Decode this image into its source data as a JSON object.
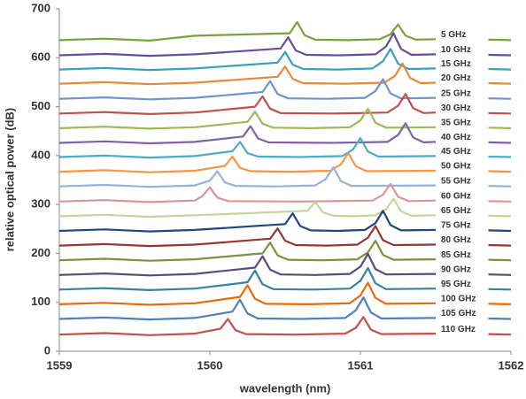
{
  "chart_data": {
    "type": "line",
    "x_label": "wavelength (nm)",
    "y_label": "relative optical power (dB)",
    "xlim": [
      1559,
      1562
    ],
    "xticks": [
      1559,
      1560,
      1561,
      1562
    ],
    "ylim": [
      0,
      700
    ],
    "yticks": [
      0,
      100,
      200,
      300,
      400,
      500,
      600,
      700
    ],
    "grid": false,
    "legend": "right",
    "series": [
      {
        "name": "5 GHz",
        "color": "#77a33a",
        "x": [
          1559,
          1559.3,
          1559.6,
          1559.9,
          1560.53,
          1560.58,
          1560.63,
          1560.7,
          1560.92,
          1561.13,
          1561.2,
          1561.25,
          1561.3,
          1561.37,
          1561.5,
          1561.7,
          1561.85,
          1562
        ],
        "values": [
          636,
          639,
          635,
          645,
          650,
          673,
          646,
          637,
          636,
          638,
          648,
          668,
          645,
          637,
          638,
          null,
          637,
          636
        ]
      },
      {
        "name": "10 GHz",
        "color": "#6b4c9a",
        "x": [
          1559,
          1559.3,
          1559.6,
          1559.9,
          1560.47,
          1560.52,
          1560.57,
          1560.64,
          1560.87,
          1561.1,
          1561.17,
          1561.22,
          1561.27,
          1561.34,
          1561.5,
          1561.7,
          1561.85,
          1562
        ],
        "values": [
          605,
          608,
          604,
          607,
          619,
          642,
          615,
          606,
          605,
          607,
          623,
          650,
          618,
          606,
          607,
          null,
          606,
          605
        ]
      },
      {
        "name": "15 GHz",
        "color": "#3aa0b8",
        "x": [
          1559,
          1559.3,
          1559.6,
          1559.9,
          1560.45,
          1560.5,
          1560.55,
          1560.62,
          1560.85,
          1561.08,
          1561.15,
          1561.2,
          1561.25,
          1561.32,
          1561.5,
          1561.7,
          1561.85,
          1562
        ],
        "values": [
          576,
          579,
          575,
          578,
          590,
          612,
          586,
          577,
          576,
          578,
          593,
          618,
          588,
          577,
          578,
          null,
          577,
          576
        ]
      },
      {
        "name": "20 GHz",
        "color": "#e5893a",
        "x": [
          1559,
          1559.3,
          1559.6,
          1559.9,
          1560.45,
          1560.5,
          1560.55,
          1560.62,
          1560.89,
          1561.16,
          1561.23,
          1561.28,
          1561.33,
          1561.4,
          1561.5,
          1561.7,
          1561.85,
          1562
        ],
        "values": [
          547,
          550,
          546,
          549,
          561,
          582,
          557,
          548,
          547,
          549,
          563,
          588,
          559,
          548,
          549,
          null,
          548,
          547
        ]
      },
      {
        "name": "25 GHz",
        "color": "#6f93cc",
        "x": [
          1559,
          1559.3,
          1559.6,
          1559.9,
          1560.35,
          1560.4,
          1560.45,
          1560.52,
          1560.78,
          1561.03,
          1561.1,
          1561.15,
          1561.2,
          1561.27,
          1561.5,
          1561.7,
          1561.85,
          1562
        ],
        "values": [
          516,
          519,
          515,
          518,
          530,
          552,
          526,
          517,
          516,
          518,
          532,
          556,
          527,
          517,
          518,
          null,
          517,
          516
        ]
      },
      {
        "name": "30 GHz",
        "color": "#c0504d",
        "x": [
          1559,
          1559.3,
          1559.6,
          1559.9,
          1560.3,
          1560.35,
          1560.4,
          1560.47,
          1560.83,
          1561.18,
          1561.25,
          1561.3,
          1561.35,
          1561.42,
          1561.5,
          1561.7,
          1561.85,
          1562
        ],
        "values": [
          486,
          489,
          485,
          488,
          500,
          521,
          496,
          487,
          486,
          488,
          502,
          526,
          497,
          487,
          488,
          null,
          487,
          486
        ]
      },
      {
        "name": "35 GHz",
        "color": "#9bbb59",
        "x": [
          1559,
          1559.3,
          1559.6,
          1559.9,
          1560.25,
          1560.3,
          1560.35,
          1560.42,
          1560.68,
          1560.93,
          1561,
          1561.05,
          1561.1,
          1561.17,
          1561.5,
          1561.7,
          1561.85,
          1562
        ],
        "values": [
          456,
          459,
          455,
          458,
          469,
          490,
          465,
          457,
          456,
          458,
          472,
          496,
          467,
          457,
          458,
          null,
          457,
          456
        ]
      },
      {
        "name": "40 GHz",
        "color": "#8064a2",
        "x": [
          1559,
          1559.3,
          1559.6,
          1559.9,
          1560.22,
          1560.27,
          1560.32,
          1560.39,
          1560.79,
          1561.18,
          1561.25,
          1561.3,
          1561.35,
          1561.42,
          1561.5,
          1561.7,
          1561.85,
          1562
        ],
        "values": [
          426,
          429,
          425,
          428,
          439,
          460,
          435,
          427,
          426,
          428,
          442,
          466,
          437,
          427,
          428,
          null,
          427,
          426
        ]
      },
      {
        "name": "45 GHz",
        "color": "#4bacc6",
        "x": [
          1559,
          1559.3,
          1559.6,
          1559.9,
          1560.15,
          1560.2,
          1560.25,
          1560.32,
          1560.6,
          1560.88,
          1560.95,
          1561,
          1561.05,
          1561.12,
          1561.5,
          1561.7,
          1561.85,
          1562
        ],
        "values": [
          397,
          400,
          396,
          399,
          409,
          428,
          405,
          398,
          397,
          399,
          412,
          436,
          408,
          398,
          399,
          null,
          398,
          397
        ]
      },
      {
        "name": "50 GHz",
        "color": "#f79646",
        "x": [
          1559,
          1559.3,
          1559.6,
          1559.9,
          1560.1,
          1560.15,
          1560.2,
          1560.27,
          1560.54,
          1560.8,
          1560.87,
          1560.92,
          1560.97,
          1561.04,
          1561.5,
          1561.7,
          1561.85,
          1562
        ],
        "values": [
          367,
          370,
          366,
          369,
          379,
          398,
          375,
          368,
          367,
          369,
          382,
          405,
          378,
          368,
          369,
          null,
          368,
          367
        ]
      },
      {
        "name": "55 GHz",
        "color": "#95b3d7",
        "x": [
          1559,
          1559.3,
          1559.6,
          1559.9,
          1560,
          1560.05,
          1560.1,
          1560.17,
          1560.44,
          1560.7,
          1560.77,
          1560.82,
          1560.87,
          1560.94,
          1561.5,
          1561.7,
          1561.85,
          1562
        ],
        "values": [
          337,
          340,
          336,
          339,
          349,
          368,
          345,
          338,
          337,
          339,
          352,
          376,
          348,
          338,
          339,
          null,
          338,
          337
        ]
      },
      {
        "name": "60 GHz",
        "color": "#d99694",
        "x": [
          1559,
          1559.3,
          1559.6,
          1559.9,
          1559.95,
          1560,
          1560.05,
          1560.12,
          1560.6,
          1561.08,
          1561.15,
          1561.2,
          1561.25,
          1561.32,
          1561.5,
          1561.7,
          1561.85,
          1562
        ],
        "values": [
          306,
          309,
          305,
          308,
          317,
          335,
          314,
          307,
          306,
          308,
          320,
          342,
          316,
          307,
          308,
          null,
          307,
          306
        ]
      },
      {
        "name": "65 GHz",
        "color": "#c3d69b",
        "x": [
          1559,
          1559.3,
          1559.6,
          1559.9,
          1560.65,
          1560.7,
          1560.75,
          1560.82,
          1560.96,
          1561.1,
          1561.17,
          1561.22,
          1561.27,
          1561.34,
          1561.5,
          1561.7,
          1561.85,
          1562
        ],
        "values": [
          276,
          279,
          275,
          278,
          287,
          305,
          284,
          277,
          276,
          278,
          290,
          312,
          286,
          277,
          278,
          null,
          277,
          276
        ]
      },
      {
        "name": "75 GHz",
        "color": "#1f497d",
        "x": [
          1559,
          1559.3,
          1559.6,
          1559.9,
          1560.5,
          1560.55,
          1560.6,
          1560.67,
          1560.85,
          1561.03,
          1561.1,
          1561.15,
          1561.2,
          1561.27,
          1561.5,
          1561.7,
          1561.85,
          1562
        ],
        "values": [
          246,
          249,
          245,
          248,
          260,
          282,
          256,
          247,
          246,
          248,
          262,
          287,
          258,
          247,
          248,
          null,
          247,
          246
        ]
      },
      {
        "name": "80 GHz",
        "color": "#943634",
        "x": [
          1559,
          1559.3,
          1559.6,
          1559.9,
          1560.4,
          1560.45,
          1560.5,
          1560.57,
          1560.78,
          1560.98,
          1561.05,
          1561.1,
          1561.15,
          1561.22,
          1561.5,
          1561.7,
          1561.85,
          1562
        ],
        "values": [
          216,
          219,
          215,
          218,
          230,
          251,
          226,
          217,
          216,
          218,
          232,
          256,
          227,
          217,
          218,
          null,
          217,
          216
        ]
      },
      {
        "name": "85 GHz",
        "color": "#77933c",
        "x": [
          1559,
          1559.3,
          1559.6,
          1559.9,
          1560.35,
          1560.4,
          1560.45,
          1560.52,
          1560.75,
          1560.98,
          1561.05,
          1561.1,
          1561.15,
          1561.22,
          1561.5,
          1561.7,
          1561.85,
          1562
        ],
        "values": [
          186,
          189,
          185,
          188,
          200,
          222,
          196,
          187,
          186,
          188,
          202,
          226,
          197,
          187,
          188,
          null,
          187,
          186
        ]
      },
      {
        "name": "90 GHz",
        "color": "#5f497a",
        "x": [
          1559,
          1559.3,
          1559.6,
          1559.9,
          1560.3,
          1560.35,
          1560.4,
          1560.47,
          1560.7,
          1560.93,
          1561,
          1561.05,
          1561.1,
          1561.17,
          1561.5,
          1561.7,
          1561.85,
          1562
        ],
        "values": [
          156,
          159,
          155,
          158,
          171,
          194,
          167,
          157,
          156,
          158,
          173,
          199,
          168,
          157,
          158,
          null,
          157,
          156
        ]
      },
      {
        "name": "95 GHz",
        "color": "#31859c",
        "x": [
          1559,
          1559.3,
          1559.6,
          1559.9,
          1560.25,
          1560.3,
          1560.35,
          1560.42,
          1560.68,
          1560.93,
          1561,
          1561.05,
          1561.1,
          1561.17,
          1561.5,
          1561.7,
          1561.85,
          1562
        ],
        "values": [
          126,
          129,
          125,
          128,
          141,
          165,
          137,
          127,
          126,
          128,
          144,
          170,
          139,
          127,
          128,
          null,
          127,
          126
        ]
      },
      {
        "name": "100 GHz",
        "color": "#e46c0a",
        "x": [
          1559,
          1559.3,
          1559.6,
          1559.9,
          1560.2,
          1560.25,
          1560.3,
          1560.37,
          1560.65,
          1560.93,
          1561,
          1561.05,
          1561.1,
          1561.17,
          1561.5,
          1561.7,
          1561.85,
          1562
        ],
        "values": [
          96,
          99,
          95,
          98,
          111,
          135,
          107,
          97,
          96,
          98,
          114,
          140,
          109,
          97,
          98,
          null,
          97,
          96
        ]
      },
      {
        "name": "105 GHz",
        "color": "#4f81bd",
        "x": [
          1559,
          1559.3,
          1559.6,
          1559.9,
          1560.15,
          1560.2,
          1560.25,
          1560.32,
          1560.61,
          1560.9,
          1560.97,
          1561.02,
          1561.07,
          1561.14,
          1561.5,
          1561.7,
          1561.85,
          1562
        ],
        "values": [
          66,
          69,
          65,
          68,
          81,
          105,
          77,
          67,
          66,
          68,
          84,
          110,
          79,
          67,
          68,
          null,
          67,
          66
        ]
      },
      {
        "name": "110 GHz",
        "color": "#c0504d",
        "x": [
          1559,
          1559.3,
          1559.6,
          1559.9,
          1560.07,
          1560.12,
          1560.17,
          1560.24,
          1560.57,
          1560.9,
          1560.97,
          1561.02,
          1561.07,
          1561.14,
          1561.5,
          1561.7,
          1561.85,
          1562
        ],
        "values": [
          34,
          37,
          33,
          36,
          46,
          66,
          43,
          35,
          34,
          36,
          48,
          70,
          44,
          35,
          36,
          null,
          35,
          34
        ]
      }
    ]
  }
}
